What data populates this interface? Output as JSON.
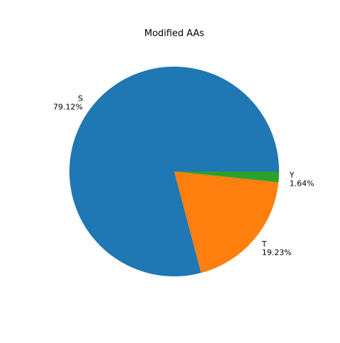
{
  "chart_data": {
    "type": "pie",
    "title": "Modified AAs",
    "slices": [
      {
        "label": "S",
        "value": 79.12,
        "pct_label": "79.12%",
        "color": "#1f77b4"
      },
      {
        "label": "T",
        "value": 19.23,
        "pct_label": "19.23%",
        "color": "#ff7f0e"
      },
      {
        "label": "Y",
        "value": 1.64,
        "pct_label": "1.64%",
        "color": "#2ca02c"
      }
    ],
    "start_angle_deg": 0,
    "direction": "counterclockwise",
    "legend": "none"
  }
}
